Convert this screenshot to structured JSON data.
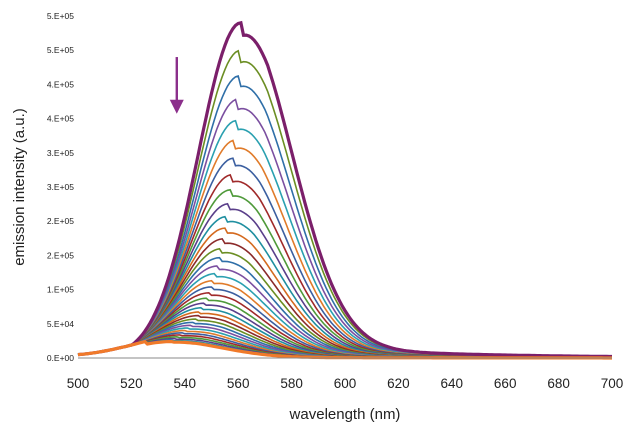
{
  "chart_data": {
    "type": "line",
    "title": "",
    "xlabel": "wavelength (nm)",
    "ylabel": "emission intensity (a.u.)",
    "xlim": [
      500,
      700
    ],
    "ylim": [
      0,
      500000
    ],
    "grid": false,
    "legend": "none",
    "x_ticks": [
      500,
      520,
      540,
      560,
      580,
      600,
      620,
      640,
      660,
      680,
      700
    ],
    "x_tick_labels": [
      "500",
      "520",
      "540",
      "560",
      "580",
      "600",
      "620",
      "640",
      "660",
      "680",
      "700"
    ],
    "y_ticks": [
      0,
      50000,
      100000,
      150000,
      200000,
      250000,
      300000,
      350000,
      400000,
      450000,
      500000
    ],
    "y_tick_labels": [
      "0.E+00",
      "5.E+04",
      "1.E+05",
      "2.E+05",
      "2.E+05",
      "3.E+05",
      "3.E+05",
      "4.E+05",
      "4.E+05",
      "5.E+05",
      "5.E+05"
    ],
    "spectra": {
      "count": 36,
      "peak_wavelength_nm": 561,
      "first_peak": 490000,
      "last_peak": 24000,
      "last_peak_wavelength_nm": 535,
      "baseline_at_500": 5000,
      "crossover_wavelength_nm": 525,
      "crossover_intensity": 24000,
      "highlighted_first_color": "#7b1f6a",
      "highlighted_last_color": "#f07a2a",
      "palette": [
        "#8b2a2a",
        "#6b8e23",
        "#2f6fa8",
        "#7b4fa0",
        "#2aa0b0",
        "#e07b2a",
        "#3b5fa0",
        "#a02a2a",
        "#4f9a3a",
        "#5a3f8a",
        "#1f8fa0",
        "#d46a1f"
      ]
    },
    "annotation": {
      "type": "arrow",
      "direction": "down",
      "meaning": "decreasing intensity",
      "x": 537,
      "y_from": 440000,
      "y_to": 360000,
      "color": "#8b2f8b"
    }
  }
}
